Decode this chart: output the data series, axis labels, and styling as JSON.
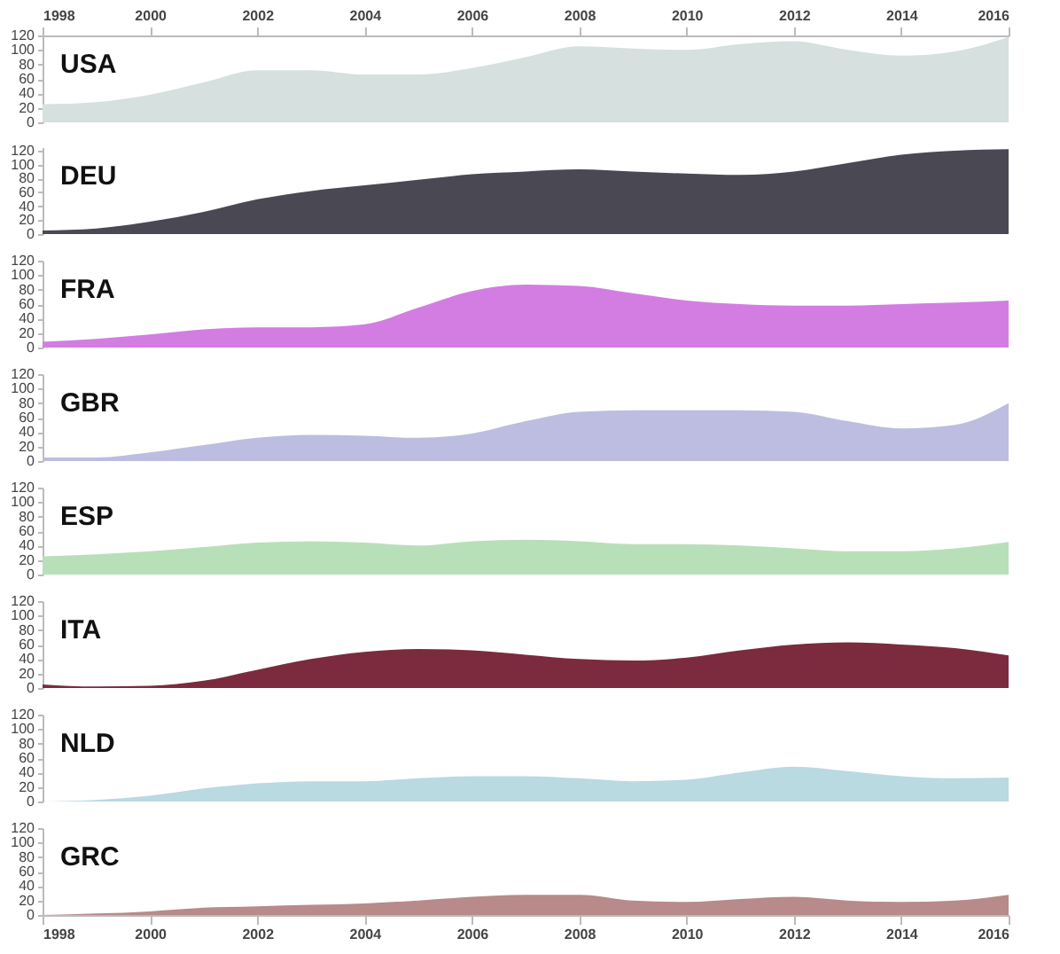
{
  "chart_data": [
    {
      "type": "area",
      "x": [
        1998,
        1999,
        2000,
        2001,
        2002,
        2003,
        2004,
        2005,
        2006,
        2007,
        2008,
        2009,
        2010,
        2011,
        2012,
        2013,
        2014,
        2015,
        2016
      ],
      "xlim": [
        1998,
        2016
      ],
      "xticks": [
        1998,
        2000,
        2002,
        2004,
        2006,
        2008,
        2010,
        2012,
        2014,
        2016
      ],
      "ylim": [
        0,
        120
      ],
      "yticks": [
        0,
        20,
        40,
        60,
        80,
        100,
        120
      ],
      "grid": false,
      "series": [
        {
          "name": "USA",
          "color": "#d5e0df",
          "values": [
            25,
            28,
            38,
            55,
            72,
            72,
            66,
            66,
            75,
            90,
            105,
            102,
            100,
            108,
            112,
            100,
            92,
            98,
            118
          ]
        }
      ]
    },
    {
      "type": "area",
      "x": [
        1998,
        1999,
        2000,
        2001,
        2002,
        2003,
        2004,
        2005,
        2006,
        2007,
        2008,
        2009,
        2010,
        2011,
        2012,
        2013,
        2014,
        2015,
        2016
      ],
      "xlim": [
        1998,
        2016
      ],
      "xticks": [
        1998,
        2000,
        2002,
        2004,
        2006,
        2008,
        2010,
        2012,
        2014,
        2016
      ],
      "ylim": [
        0,
        125
      ],
      "yticks": [
        0,
        20,
        40,
        60,
        80,
        100,
        120
      ],
      "grid": false,
      "tick_labels": "y",
      "series": [
        {
          "name": "DEU",
          "color": "#4a4852",
          "values": [
            5,
            8,
            18,
            32,
            50,
            62,
            70,
            78,
            86,
            90,
            93,
            90,
            87,
            85,
            90,
            102,
            114,
            120,
            122
          ]
        }
      ]
    },
    {
      "type": "area",
      "x": [
        1998,
        1999,
        2000,
        2001,
        2002,
        2003,
        2004,
        2005,
        2006,
        2007,
        2008,
        2009,
        2010,
        2011,
        2012,
        2013,
        2014,
        2015,
        2016
      ],
      "xlim": [
        1998,
        2016
      ],
      "xticks": [
        1998,
        2000,
        2002,
        2004,
        2006,
        2008,
        2010,
        2012,
        2014,
        2016
      ],
      "ylim": [
        0,
        120
      ],
      "yticks": [
        0,
        20,
        40,
        60,
        80,
        100,
        120
      ],
      "grid": false,
      "tick_labels": "y",
      "series": [
        {
          "name": "FRA",
          "color": "#d37de3",
          "values": [
            8,
            12,
            18,
            25,
            28,
            28,
            32,
            55,
            78,
            87,
            85,
            75,
            65,
            60,
            58,
            58,
            60,
            62,
            65
          ]
        }
      ]
    },
    {
      "type": "area",
      "x": [
        1998,
        1999,
        2000,
        2001,
        2002,
        2003,
        2004,
        2005,
        2006,
        2007,
        2008,
        2009,
        2010,
        2011,
        2012,
        2013,
        2014,
        2015,
        2016
      ],
      "xlim": [
        1998,
        2016
      ],
      "xticks": [
        1998,
        2000,
        2002,
        2004,
        2006,
        2008,
        2010,
        2012,
        2014,
        2016
      ],
      "ylim": [
        0,
        120
      ],
      "yticks": [
        0,
        20,
        40,
        60,
        80,
        100,
        120
      ],
      "grid": false,
      "tick_labels": "y",
      "series": [
        {
          "name": "GBR",
          "color": "#bcbde0",
          "values": [
            5,
            5,
            12,
            22,
            32,
            36,
            35,
            32,
            38,
            55,
            68,
            70,
            70,
            70,
            68,
            55,
            45,
            50,
            80
          ]
        }
      ]
    },
    {
      "type": "area",
      "x": [
        1998,
        1999,
        2000,
        2001,
        2002,
        2003,
        2004,
        2005,
        2006,
        2007,
        2008,
        2009,
        2010,
        2011,
        2012,
        2013,
        2014,
        2015,
        2016
      ],
      "xlim": [
        1998,
        2016
      ],
      "xticks": [
        1998,
        2000,
        2002,
        2004,
        2006,
        2008,
        2010,
        2012,
        2014,
        2016
      ],
      "ylim": [
        0,
        120
      ],
      "yticks": [
        0,
        20,
        40,
        60,
        80,
        100,
        120
      ],
      "grid": false,
      "tick_labels": "y",
      "series": [
        {
          "name": "ESP",
          "color": "#b8e0b8",
          "values": [
            25,
            28,
            32,
            38,
            44,
            46,
            44,
            40,
            46,
            48,
            46,
            42,
            42,
            40,
            36,
            32,
            32,
            36,
            45
          ]
        }
      ]
    },
    {
      "type": "area",
      "x": [
        1998,
        1999,
        2000,
        2001,
        2002,
        2003,
        2004,
        2005,
        2006,
        2007,
        2008,
        2009,
        2010,
        2011,
        2012,
        2013,
        2014,
        2015,
        2016
      ],
      "xlim": [
        1998,
        2016
      ],
      "xticks": [
        1998,
        2000,
        2002,
        2004,
        2006,
        2008,
        2010,
        2012,
        2014,
        2016
      ],
      "ylim": [
        0,
        120
      ],
      "yticks": [
        0,
        20,
        40,
        60,
        80,
        100,
        120
      ],
      "grid": false,
      "tick_labels": "y",
      "series": [
        {
          "name": "ITA",
          "color": "#7c2a3e",
          "values": [
            5,
            2,
            3,
            10,
            25,
            40,
            50,
            54,
            52,
            46,
            40,
            38,
            42,
            52,
            60,
            63,
            60,
            55,
            45
          ]
        }
      ]
    },
    {
      "type": "area",
      "x": [
        1998,
        1999,
        2000,
        2001,
        2002,
        2003,
        2004,
        2005,
        2006,
        2007,
        2008,
        2009,
        2010,
        2011,
        2012,
        2013,
        2014,
        2015,
        2016
      ],
      "xlim": [
        1998,
        2016
      ],
      "xticks": [
        1998,
        2000,
        2002,
        2004,
        2006,
        2008,
        2010,
        2012,
        2014,
        2016
      ],
      "ylim": [
        0,
        120
      ],
      "yticks": [
        0,
        20,
        40,
        60,
        80,
        100,
        120
      ],
      "grid": false,
      "tick_labels": "y",
      "series": [
        {
          "name": "NLD",
          "color": "#b8dae0",
          "values": [
            0,
            2,
            8,
            18,
            25,
            28,
            28,
            32,
            35,
            35,
            32,
            28,
            30,
            40,
            48,
            42,
            35,
            32,
            33
          ]
        }
      ]
    },
    {
      "type": "area",
      "x": [
        1998,
        1999,
        2000,
        2001,
        2002,
        2003,
        2004,
        2005,
        2006,
        2007,
        2008,
        2009,
        2010,
        2011,
        2012,
        2013,
        2014,
        2015,
        2016
      ],
      "xlim": [
        1998,
        2016
      ],
      "xticks": [
        1998,
        2000,
        2002,
        2004,
        2006,
        2008,
        2010,
        2012,
        2014,
        2016
      ],
      "ylim": [
        0,
        120
      ],
      "yticks": [
        0,
        20,
        40,
        60,
        80,
        100,
        120
      ],
      "grid": false,
      "series": [
        {
          "name": "GRC",
          "color": "#b88a8a",
          "values": [
            0,
            2,
            5,
            10,
            12,
            14,
            16,
            20,
            25,
            28,
            28,
            20,
            18,
            22,
            25,
            20,
            18,
            20,
            28
          ]
        }
      ]
    }
  ]
}
